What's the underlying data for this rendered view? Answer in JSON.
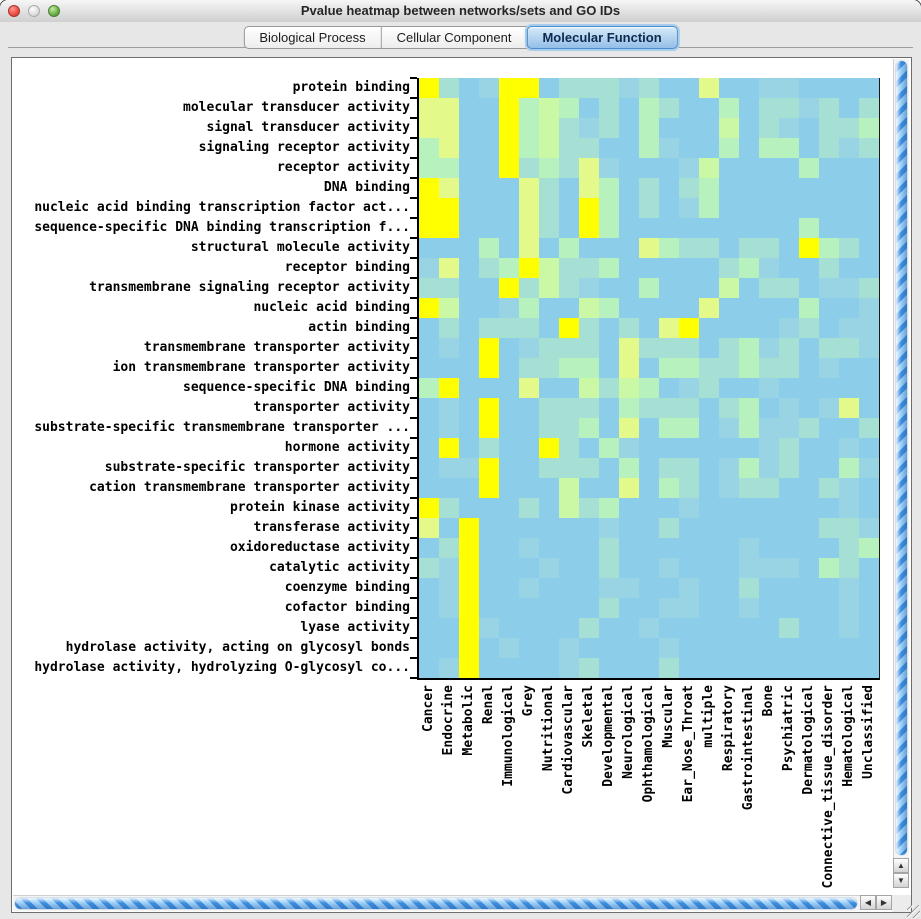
{
  "window": {
    "title": "Pvalue heatmap between networks/sets and GO IDs"
  },
  "tabs": [
    {
      "label": "Biological Process",
      "selected": false
    },
    {
      "label": "Cellular Component",
      "selected": false
    },
    {
      "label": "Molecular Function",
      "selected": true
    }
  ],
  "scrollbars": {
    "up": "▲",
    "down": "▼",
    "left": "◀",
    "right": "▶"
  },
  "chart_data": {
    "type": "heatmap",
    "rows": [
      "protein binding",
      "molecular transducer activity",
      "signal transducer activity",
      "signaling receptor activity",
      "receptor activity",
      "DNA binding",
      "nucleic acid binding transcription factor act...",
      "sequence-specific DNA binding transcription f...",
      "structural molecule activity",
      "receptor binding",
      "transmembrane signaling receptor activity",
      "nucleic acid binding",
      "actin binding",
      "transmembrane transporter activity",
      "ion transmembrane transporter activity",
      "sequence-specific DNA binding",
      "transporter activity",
      "substrate-specific transmembrane transporter ...",
      "hormone activity",
      "substrate-specific transporter activity",
      "cation transmembrane transporter activity",
      "protein kinase activity",
      "transferase activity",
      "oxidoreductase activity",
      "catalytic activity",
      "coenzyme binding",
      "cofactor binding",
      "lyase activity",
      "hydrolase activity, acting on glycosyl bonds",
      "hydrolase activity, hydrolyzing O-glycosyl co..."
    ],
    "columns": [
      "Cancer",
      "Endocrine",
      "Metabolic",
      "Renal",
      "Immunological",
      "Grey",
      "Nutritional",
      "Cardiovascular",
      "Skeletal",
      "Developmental",
      "Neurological",
      "Ophthamological",
      "Muscular",
      "Ear_Nose_Throat",
      "multiple",
      "Respiratory",
      "Gastrointestinal",
      "Bone",
      "Psychiatric",
      "Dermatological",
      "Connective_tissue_disorder",
      "Hematological",
      "Unclassified"
    ],
    "palette": {
      "B": "#8CCDEA",
      "b": "#99D4E4",
      "t": "#A6DFD4",
      "g": "#B7F2BE",
      "G": "#CBF8A4",
      "y": "#E3FA8A",
      "Y": "#FFFF00"
    },
    "palette_note": "B=base blue (high p), b=light blue-teal, t=pale teal, g=mint green, G=pale yellow-green, y=pale yellow, Y=bright yellow (low p)",
    "cells": [
      "YtBbYYBtttbtBByBBbbBBBB",
      "yyBBYgGgBtBgtBBgBttbtBt",
      "yyBBYgGtbtBgBBBGBtbBttg",
      "gyBBYgGttBBgbBBgBggBtbt",
      "ggBBYtgtybBBBbGBBBBgBBB",
      "YyBBBytBygBtBtgBBBBBBBB",
      "YYBBBytBYgBtBbgBBBBBBBB",
      "YYBBBytBYgBBBBBBBBBgBBB",
      "BBBgByBgBBBygttBttBYgtB",
      "byBtgYGttgBBBBBtgbBBtBB",
      "ttBBYtGtbBBgBBBGBttBbbt",
      "YGBBbgBBGgBBBByBBBBgBBb",
      "BtBtttBYtBtByYBBBBbtBbb",
      "BbBYBbtttBytttBtgbtBttb",
      "BBBYBttggByBggttgttBbBB",
      "gYBBByBBGtGgBbtBBbBBBBB",
      "BbBYBBtttBgtttBtgBbBbyB",
      "BbBYBBttgByBggBbgbbtBBt",
      "BYBtBBYtBgbBBBBBBbtBBbB",
      "BbbYBBtttBgBttBbgbtBBgb",
      "BBBYBBBGBByBgtBbttBBtbB",
      "YtBBBtBGtgBBBbBBBBBBBbB",
      "yBYBBBBBBbBBtBBBBBBBttb",
      "BtYBBbBBBtBBBBBBbBBBBtg",
      "tbYBBBbBBtBBbBBBbbbBgtB",
      "BbYBBbBBBbbBBbBBtBBBBbB",
      "BbYBBBBBBtBBbbBBbBBBBbB",
      "BBYbBBBBtBBbBBBBBBtBBbB",
      "BBYBbBBbBBBBbBBBBBBBBBB",
      "BbYBBBBbtBBBtBBBBBBBBBB"
    ]
  }
}
